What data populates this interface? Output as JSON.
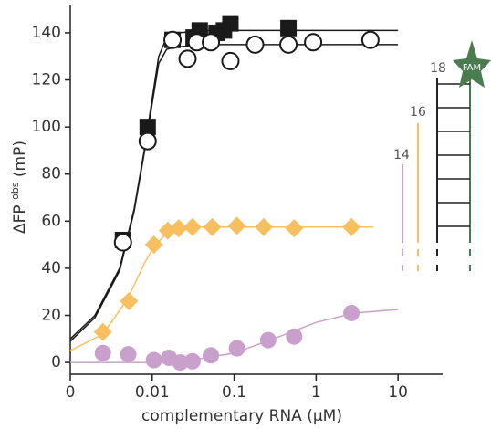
{
  "chart_data": {
    "type": "scatter",
    "ylabel": "ΔFP",
    "ylabel_sup": "obs",
    "ylabel_unit": "(mP)",
    "xlabel": "complementary RNA (μM)",
    "log_x": true,
    "xlim": [
      0.001,
      35
    ],
    "ylim": [
      -5,
      152
    ],
    "xticks": [
      {
        "value": 0.001,
        "label": "0"
      },
      0.01,
      0.1,
      1,
      10
    ],
    "yticks": [
      0,
      20,
      40,
      60,
      80,
      100,
      120,
      140
    ],
    "series": [
      {
        "marker": "square",
        "color": "#1a1a1a",
        "x": [
          0.0044,
          0.0088,
          0.0177,
          0.032,
          0.038,
          0.061,
          0.075,
          0.09,
          0.46
        ],
        "values": [
          52,
          100,
          137,
          138,
          141,
          140,
          141,
          144,
          142
        ]
      },
      {
        "marker": "circle",
        "color": "#ffffff",
        "x": [
          0.0044,
          0.0088,
          0.0177,
          0.027,
          0.035,
          0.052,
          0.09,
          0.18,
          0.46,
          0.92,
          4.6
        ],
        "values": [
          51,
          94,
          137,
          129,
          136,
          136,
          128,
          135,
          135,
          136,
          137
        ]
      },
      {
        "marker": "diamond",
        "color": "#f7bf5e",
        "x": [
          0.0025,
          0.0052,
          0.0105,
          0.0155,
          0.021,
          0.031,
          0.054,
          0.108,
          0.23,
          0.54,
          2.7
        ],
        "values": [
          13,
          26,
          50,
          56,
          57,
          57.5,
          57.5,
          58,
          57.5,
          57,
          57.5
        ]
      },
      {
        "marker": "circle",
        "color": "#c9a0cc",
        "x": [
          0.0025,
          0.0051,
          0.0105,
          0.016,
          0.022,
          0.031,
          0.052,
          0.108,
          0.26,
          0.54,
          2.7
        ],
        "values": [
          4,
          3.5,
          1,
          2,
          0,
          0.5,
          3,
          6,
          9.5,
          11,
          21
        ]
      }
    ],
    "fits": [
      {
        "color": "#1a1a1a",
        "x": [
          0.001,
          0.002,
          0.004,
          0.006,
          0.008,
          0.01,
          0.012,
          0.015,
          0.02,
          0.05,
          0.1,
          1,
          10
        ],
        "values": [
          10,
          20,
          40,
          65,
          90,
          112,
          130,
          138,
          140,
          141,
          141,
          141,
          141
        ]
      },
      {
        "color": "#1a1a1a",
        "x": [
          0.001,
          0.002,
          0.004,
          0.006,
          0.008,
          0.01,
          0.012,
          0.015,
          0.02,
          0.05,
          0.1,
          1,
          10
        ],
        "values": [
          9,
          19,
          39,
          64,
          89,
          110,
          127,
          133,
          134,
          135,
          135,
          135,
          135
        ]
      },
      {
        "color": "#f7bf5e",
        "x": [
          0.001,
          0.0025,
          0.005,
          0.008,
          0.01,
          0.015,
          0.02,
          0.03,
          0.1,
          1,
          5
        ],
        "values": [
          5,
          12,
          27,
          42,
          48,
          55,
          57,
          57.5,
          57.5,
          57.5,
          57.5
        ]
      },
      {
        "color": "#c9a0cc",
        "x": [
          0.001,
          0.01,
          0.03,
          0.1,
          0.3,
          1,
          3,
          10
        ],
        "values": [
          0,
          0,
          1,
          4,
          10,
          17,
          21,
          22.5
        ]
      }
    ]
  },
  "inset": {
    "labels": [
      "14",
      "16",
      "18"
    ],
    "tag": "FAM"
  }
}
